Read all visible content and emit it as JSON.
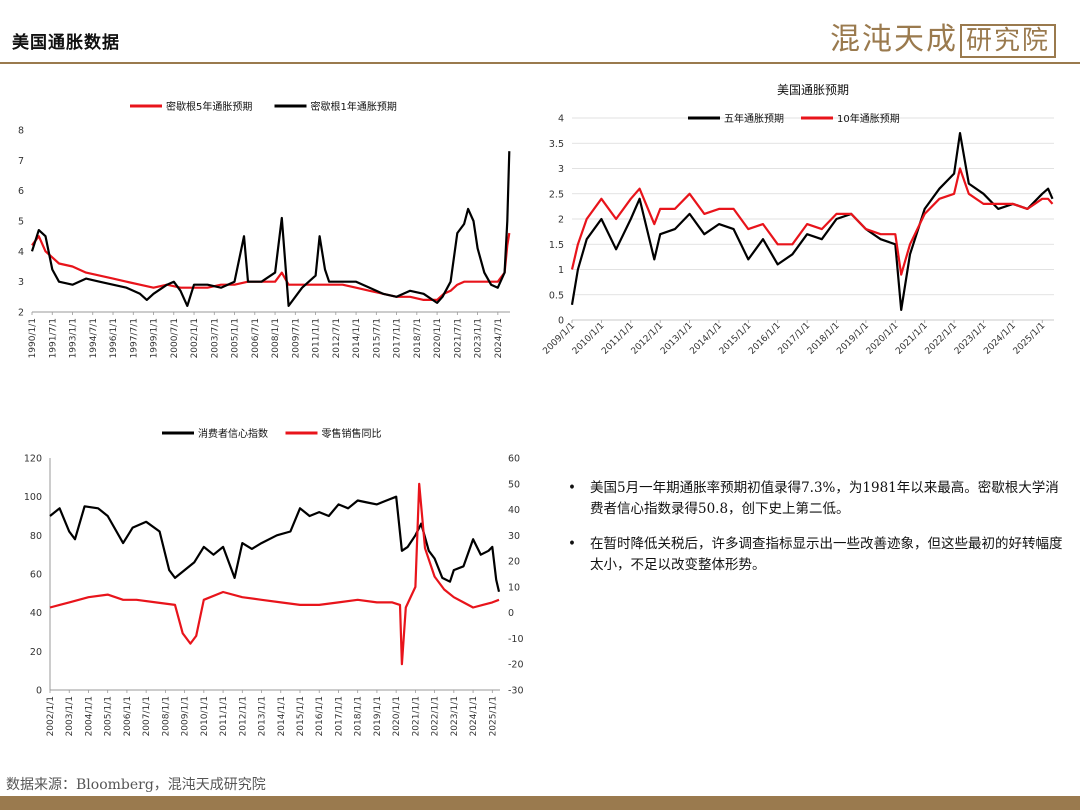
{
  "header": {
    "title": "美国通胀数据",
    "logo_main": "混沌天成",
    "logo_boxed": "研究院"
  },
  "source": "数据来源：Bloomberg，混沌天成研究院",
  "bullets": [
    "美国5月一年期通胀率预期初值录得7.3%，为1981年以来最高。密歇根大学消费者信心指数录得50.8，创下史上第二低。",
    "在暂时降低关税后，许多调查指标显示出一些改善迹象，但这些最初的好转幅度太小，不足以改变整体形势。"
  ],
  "chart_data": [
    {
      "type": "line",
      "title": "",
      "legend_position": "top",
      "ylim": [
        2,
        8
      ],
      "yticks": [
        "2",
        "3",
        "4",
        "5",
        "6",
        "7",
        "8"
      ],
      "xlim": [
        1990.0,
        2025.4
      ],
      "xticks": [
        "1990/1/1",
        "1991/7/1",
        "1993/1/1",
        "1994/7/1",
        "1996/1/1",
        "1997/7/1",
        "1999/1/1",
        "2000/7/1",
        "2002/1/1",
        "2003/7/1",
        "2005/1/1",
        "2006/7/1",
        "2008/1/1",
        "2009/7/1",
        "2011/1/1",
        "2012/7/1",
        "2014/1/1",
        "2015/7/1",
        "2017/1/1",
        "2018/7/1",
        "2020/1/1",
        "2021/7/1",
        "2023/1/1",
        "2024/7/1"
      ],
      "series": [
        {
          "name": "密歇根5年通胀预期",
          "color": "#e8141b",
          "x": [
            1990.0,
            1990.5,
            1991.0,
            1991.5,
            1992.0,
            1993.0,
            1994.0,
            1995.0,
            1996.0,
            1997.0,
            1998.0,
            1999.0,
            2000.0,
            2001.0,
            2002.0,
            2003.0,
            2004.0,
            2005.0,
            2006.0,
            2007.0,
            2008.0,
            2008.5,
            2009.0,
            2010.0,
            2011.0,
            2012.0,
            2013.0,
            2014.0,
            2015.0,
            2016.0,
            2017.0,
            2018.0,
            2019.0,
            2020.0,
            2020.5,
            2021.0,
            2021.5,
            2022.0,
            2022.5,
            2023.0,
            2023.5,
            2024.0,
            2024.5,
            2025.0,
            2025.2,
            2025.35
          ],
          "y": [
            4.2,
            4.5,
            4.0,
            3.8,
            3.6,
            3.5,
            3.3,
            3.2,
            3.1,
            3.0,
            2.9,
            2.8,
            2.9,
            2.8,
            2.8,
            2.8,
            2.9,
            2.9,
            3.0,
            3.0,
            3.0,
            3.3,
            2.9,
            2.9,
            2.9,
            2.9,
            2.9,
            2.8,
            2.7,
            2.6,
            2.5,
            2.5,
            2.4,
            2.4,
            2.6,
            2.7,
            2.9,
            3.0,
            3.0,
            3.0,
            3.0,
            3.0,
            3.0,
            3.3,
            4.2,
            4.6
          ]
        },
        {
          "name": "密歇根1年通胀预期",
          "color": "#000000",
          "x": [
            1990.0,
            1990.5,
            1991.0,
            1991.5,
            1992.0,
            1993.0,
            1994.0,
            1995.0,
            1996.0,
            1997.0,
            1998.0,
            1998.5,
            1999.0,
            2000.0,
            2000.5,
            2001.0,
            2001.5,
            2002.0,
            2003.0,
            2004.0,
            2005.0,
            2005.7,
            2006.0,
            2007.0,
            2008.0,
            2008.5,
            2009.0,
            2010.0,
            2011.0,
            2011.3,
            2011.7,
            2012.0,
            2013.0,
            2014.0,
            2015.0,
            2016.0,
            2017.0,
            2018.0,
            2019.0,
            2020.0,
            2020.4,
            2021.0,
            2021.5,
            2022.0,
            2022.3,
            2022.7,
            2023.0,
            2023.5,
            2024.0,
            2024.5,
            2025.0,
            2025.2,
            2025.35
          ],
          "y": [
            4.0,
            4.7,
            4.5,
            3.4,
            3.0,
            2.9,
            3.1,
            3.0,
            2.9,
            2.8,
            2.6,
            2.4,
            2.6,
            2.9,
            3.0,
            2.7,
            2.2,
            2.9,
            2.9,
            2.8,
            3.0,
            4.5,
            3.0,
            3.0,
            3.3,
            5.1,
            2.2,
            2.8,
            3.2,
            4.5,
            3.4,
            3.0,
            3.0,
            3.0,
            2.8,
            2.6,
            2.5,
            2.7,
            2.6,
            2.3,
            2.5,
            3.0,
            4.6,
            4.9,
            5.4,
            5.0,
            4.1,
            3.3,
            2.9,
            2.8,
            3.3,
            5.0,
            7.3
          ]
        }
      ]
    },
    {
      "type": "line",
      "title": "美国通胀预期",
      "legend_position": "top",
      "ylim": [
        0,
        4
      ],
      "yticks": [
        "0",
        "0.5",
        "1",
        "1.5",
        "2",
        "2.5",
        "3",
        "3.5",
        "4"
      ],
      "xlim": [
        2009.0,
        2025.4
      ],
      "xticks": [
        "2009/1/1",
        "2010/1/1",
        "2011/1/1",
        "2012/1/1",
        "2013/1/1",
        "2014/1/1",
        "2015/1/1",
        "2016/1/1",
        "2017/1/1",
        "2018/1/1",
        "2019/1/1",
        "2020/1/1",
        "2021/1/1",
        "2022/1/1",
        "2023/1/1",
        "2024/1/1",
        "2025/1/1"
      ],
      "series": [
        {
          "name": "五年通胀预期",
          "color": "#000000",
          "x": [
            2009.0,
            2009.2,
            2009.5,
            2010.0,
            2010.5,
            2011.0,
            2011.3,
            2011.8,
            2012.0,
            2012.5,
            2013.0,
            2013.5,
            2014.0,
            2014.5,
            2015.0,
            2015.5,
            2016.0,
            2016.5,
            2017.0,
            2017.5,
            2018.0,
            2018.5,
            2019.0,
            2019.5,
            2020.0,
            2020.2,
            2020.5,
            2021.0,
            2021.5,
            2022.0,
            2022.2,
            2022.5,
            2023.0,
            2023.5,
            2024.0,
            2024.5,
            2025.0,
            2025.2,
            2025.35
          ],
          "y": [
            0.3,
            1.0,
            1.6,
            2.0,
            1.4,
            2.0,
            2.4,
            1.2,
            1.7,
            1.8,
            2.1,
            1.7,
            1.9,
            1.8,
            1.2,
            1.6,
            1.1,
            1.3,
            1.7,
            1.6,
            2.0,
            2.1,
            1.8,
            1.6,
            1.5,
            0.2,
            1.3,
            2.2,
            2.6,
            2.9,
            3.7,
            2.7,
            2.5,
            2.2,
            2.3,
            2.2,
            2.5,
            2.6,
            2.4
          ]
        },
        {
          "name": "10年通胀预期",
          "color": "#e8141b",
          "x": [
            2009.0,
            2009.2,
            2009.5,
            2010.0,
            2010.5,
            2011.0,
            2011.3,
            2011.8,
            2012.0,
            2012.5,
            2013.0,
            2013.5,
            2014.0,
            2014.5,
            2015.0,
            2015.5,
            2016.0,
            2016.5,
            2017.0,
            2017.5,
            2018.0,
            2018.5,
            2019.0,
            2019.5,
            2020.0,
            2020.2,
            2020.5,
            2021.0,
            2021.5,
            2022.0,
            2022.2,
            2022.5,
            2023.0,
            2023.5,
            2024.0,
            2024.5,
            2025.0,
            2025.2,
            2025.35
          ],
          "y": [
            1.0,
            1.5,
            2.0,
            2.4,
            2.0,
            2.4,
            2.6,
            1.9,
            2.2,
            2.2,
            2.5,
            2.1,
            2.2,
            2.2,
            1.8,
            1.9,
            1.5,
            1.5,
            1.9,
            1.8,
            2.1,
            2.1,
            1.8,
            1.7,
            1.7,
            0.9,
            1.5,
            2.1,
            2.4,
            2.5,
            3.0,
            2.5,
            2.3,
            2.3,
            2.3,
            2.2,
            2.4,
            2.4,
            2.3
          ]
        }
      ]
    },
    {
      "type": "line",
      "title": "",
      "legend_position": "top",
      "ylim_left": [
        0,
        120
      ],
      "ylim_right": [
        -30,
        60
      ],
      "yticks_left": [
        "0",
        "20",
        "40",
        "60",
        "80",
        "100",
        "120"
      ],
      "yticks_right": [
        "-30",
        "-20",
        "-10",
        "0",
        "10",
        "20",
        "30",
        "40",
        "50",
        "60"
      ],
      "xlim": [
        2002.0,
        2025.4
      ],
      "xticks": [
        "2002/1/1",
        "2003/1/1",
        "2004/1/1",
        "2005/1/1",
        "2006/1/1",
        "2007/1/1",
        "2008/1/1",
        "2009/1/1",
        "2010/1/1",
        "2011/1/1",
        "2012/1/1",
        "2013/1/1",
        "2014/1/1",
        "2015/1/1",
        "2016/1/1",
        "2017/1/1",
        "2018/1/1",
        "2019/1/1",
        "2020/1/1",
        "2021/1/1",
        "2022/1/1",
        "2023/1/1",
        "2024/1/1",
        "2025/1/1"
      ],
      "series": [
        {
          "name": "消费者信心指数",
          "color": "#000000",
          "axis": "left",
          "x": [
            2002.0,
            2002.5,
            2003.0,
            2003.3,
            2003.8,
            2004.5,
            2005.0,
            2005.8,
            2006.3,
            2007.0,
            2007.7,
            2008.2,
            2008.5,
            2009.0,
            2009.5,
            2010.0,
            2010.5,
            2011.0,
            2011.6,
            2012.0,
            2012.5,
            2013.0,
            2013.8,
            2014.5,
            2015.0,
            2015.5,
            2016.0,
            2016.5,
            2017.0,
            2017.5,
            2018.0,
            2018.5,
            2019.0,
            2019.5,
            2020.0,
            2020.3,
            2020.6,
            2021.0,
            2021.3,
            2021.7,
            2022.0,
            2022.4,
            2022.8,
            2023.0,
            2023.5,
            2024.0,
            2024.4,
            2024.8,
            2025.0,
            2025.2,
            2025.35
          ],
          "y": [
            90,
            94,
            82,
            78,
            95,
            94,
            90,
            76,
            84,
            87,
            82,
            62,
            58,
            62,
            66,
            74,
            70,
            74,
            58,
            76,
            73,
            76,
            80,
            82,
            94,
            90,
            92,
            90,
            96,
            94,
            98,
            97,
            96,
            98,
            100,
            72,
            74,
            80,
            86,
            72,
            68,
            58,
            56,
            62,
            64,
            78,
            70,
            72,
            74,
            57,
            50.8
          ]
        },
        {
          "name": "零售销售同比",
          "color": "#e8141b",
          "axis": "right",
          "x": [
            2002.0,
            2002.5,
            2003.0,
            2004.0,
            2005.0,
            2005.8,
            2006.5,
            2007.5,
            2008.5,
            2008.9,
            2009.3,
            2009.6,
            2010.0,
            2011.0,
            2012.0,
            2013.0,
            2014.0,
            2015.0,
            2016.0,
            2017.0,
            2018.0,
            2019.0,
            2019.8,
            2020.2,
            2020.3,
            2020.5,
            2021.0,
            2021.2,
            2021.5,
            2022.0,
            2022.5,
            2023.0,
            2023.5,
            2024.0,
            2024.5,
            2025.0,
            2025.35
          ],
          "y": [
            2,
            3,
            4,
            6,
            7,
            5,
            5,
            4,
            3,
            -8,
            -12,
            -9,
            5,
            8,
            6,
            5,
            4,
            3,
            3,
            4,
            5,
            4,
            4,
            3,
            -20,
            2,
            10,
            50,
            25,
            14,
            9,
            6,
            4,
            2,
            3,
            4,
            5
          ]
        }
      ]
    }
  ]
}
